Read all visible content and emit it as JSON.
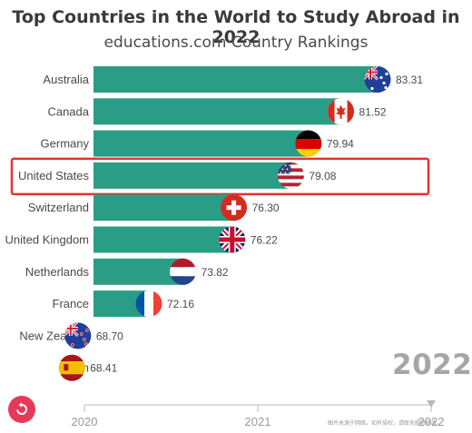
{
  "header": {
    "title": "Top Countries in the World to Study Abroad in 2022",
    "subtitle": "educations.com Country Rankings"
  },
  "year_display": "2022",
  "watermark_text": "图片来源于网络，如有侵权，请联系删除修改。",
  "highlight": {
    "category": "United States",
    "color": "#e8322d"
  },
  "colors": {
    "bar": "#2a9d86",
    "axis": "#c8c8c8",
    "label": "#4a4a4a",
    "replay": "#e8385a"
  },
  "chart_data": {
    "type": "bar",
    "orientation": "horizontal",
    "categories": [
      "Australia",
      "Canada",
      "Germany",
      "United States",
      "Switzerland",
      "United Kingdom",
      "Netherlands",
      "France",
      "New Zealand",
      "Spain"
    ],
    "values": [
      83.31,
      81.52,
      79.94,
      79.08,
      76.3,
      76.22,
      73.82,
      72.16,
      68.7,
      68.41
    ],
    "value_labels": [
      "83.31",
      "81.52",
      "79.94",
      "79.08",
      "76.30",
      "76.22",
      "73.82",
      "72.16",
      "68.70",
      "68.41"
    ],
    "flag_icons": [
      "australia-flag",
      "canada-flag",
      "germany-flag",
      "usa-flag",
      "switzerland-flag",
      "uk-flag",
      "netherlands-flag",
      "france-flag",
      "new-zealand-flag",
      "spain-flag"
    ],
    "x_axis": {
      "ticks": [
        "2020",
        "2021",
        "2022"
      ],
      "current": 2022
    },
    "title": "Top Countries in the World to Study Abroad in 2022",
    "subtitle": "educations.com Country Rankings"
  }
}
